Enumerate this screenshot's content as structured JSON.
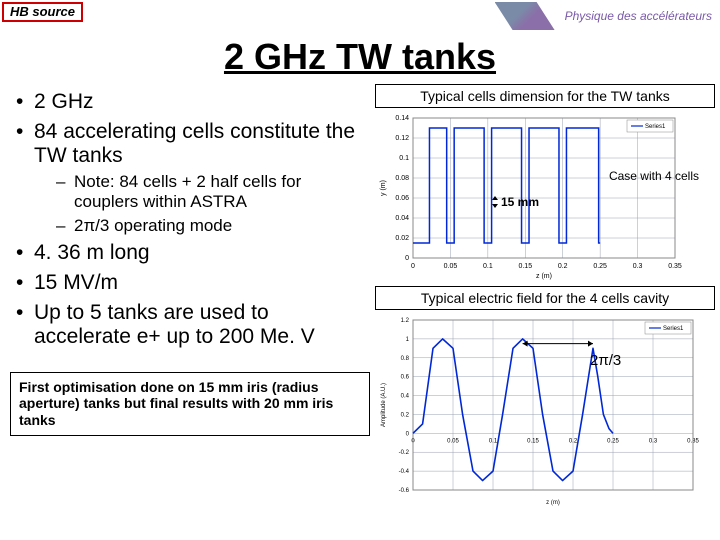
{
  "header": {
    "hb_source": "HB source",
    "logo_text": "Physique des accélérateurs"
  },
  "title": "2 GHz TW tanks",
  "bullets": {
    "b1": "2 GHz",
    "b2": "84 accelerating cells constitute the TW tanks",
    "b2_sub1": "Note: 84 cells + 2 half cells for couplers within ASTRA",
    "b2_sub2": "2π/3 operating mode",
    "b3": "4. 36 m long",
    "b4": "15 MV/m",
    "b5": "Up to 5 tanks are used to accelerate e+ up to 200 Me. V"
  },
  "footer_note": "First optimisation done on 15 mm iris (radius aperture) tanks but final results with 20 mm iris tanks",
  "right": {
    "box1": "Typical cells dimension for the TW tanks",
    "case_label": "Case with 4 cells",
    "ann_15mm": "15 mm",
    "box2": "Typical electric field for the 4 cells cavity",
    "ann_2pi3": "2π/3"
  },
  "chart1": {
    "ylabel": "y (m)",
    "xlabel": "z (m)",
    "grid_color": "#9aa0b0",
    "line_color": "#0028d6",
    "background": "#ffffff",
    "ylim": [
      0,
      0.14
    ],
    "xlim": [
      0,
      0.35
    ],
    "yticks": [
      "0",
      "0.02",
      "0.04",
      "0.06",
      "0.08",
      "0.1",
      "0.12",
      "0.14"
    ],
    "xticks": [
      "0",
      "0.05",
      "0.1",
      "0.15",
      "0.2",
      "0.25",
      "0.3",
      "0.35"
    ],
    "legend": "Series1",
    "iris_y": 0.015,
    "top_y": 0.13,
    "x_breaks": [
      0.025,
      0.075,
      0.125,
      0.175,
      0.225
    ]
  },
  "chart2": {
    "ylabel": "Amplitude (A.U.)",
    "xlabel": "z (m)",
    "line_color": "#0028d6",
    "grid_color": "#9aa0b0",
    "ylim": [
      -0.6,
      1.2
    ],
    "xlim": [
      0,
      0.35
    ],
    "yticks": [
      "-0.6",
      "-0.4",
      "-0.2",
      "0",
      "0.2",
      "0.4",
      "0.6",
      "0.8",
      "1",
      "1.2"
    ],
    "xticks": [
      "0",
      "0.05",
      "0.1",
      "0.15",
      "0.2",
      "0.25",
      "0.3",
      "0.35"
    ],
    "legend": "Series1",
    "points": [
      [
        0,
        0
      ],
      [
        0.012,
        0.1
      ],
      [
        0.025,
        0.9
      ],
      [
        0.037,
        1.0
      ],
      [
        0.05,
        0.9
      ],
      [
        0.062,
        0.2
      ],
      [
        0.075,
        -0.4
      ],
      [
        0.087,
        -0.5
      ],
      [
        0.1,
        -0.4
      ],
      [
        0.112,
        0.2
      ],
      [
        0.125,
        0.9
      ],
      [
        0.137,
        1.0
      ],
      [
        0.15,
        0.9
      ],
      [
        0.162,
        0.2
      ],
      [
        0.175,
        -0.4
      ],
      [
        0.187,
        -0.5
      ],
      [
        0.2,
        -0.4
      ],
      [
        0.212,
        0.2
      ],
      [
        0.225,
        0.9
      ],
      [
        0.231,
        0.6
      ],
      [
        0.238,
        0.2
      ],
      [
        0.245,
        0.05
      ],
      [
        0.25,
        0
      ]
    ]
  }
}
